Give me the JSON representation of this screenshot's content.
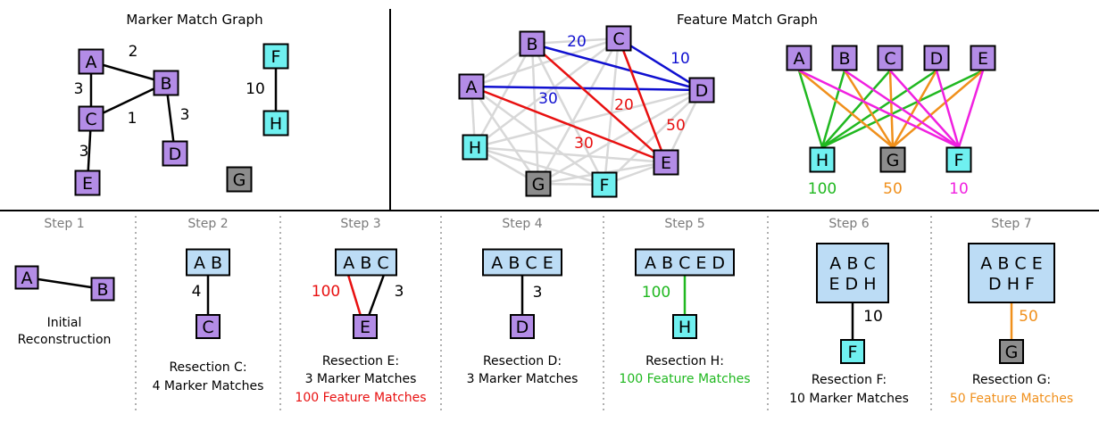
{
  "colors": {
    "purple": "#b38ce6",
    "cyan": "#6ff0f0",
    "gray": "#8c8c8c",
    "cluster": "#bcdcf5",
    "red": "#e81010",
    "blue": "#1010d0",
    "green": "#20b820",
    "orange": "#f0901c",
    "magenta": "#f020e0",
    "lightgray": "#d8d8d8",
    "black": "#000000"
  },
  "marker_graph": {
    "title": "Marker Match Graph",
    "nodes": [
      "A",
      "B",
      "C",
      "D",
      "E",
      "F",
      "G",
      "H"
    ],
    "edges": [
      {
        "from": "A",
        "to": "B",
        "weight": "2"
      },
      {
        "from": "A",
        "to": "C",
        "weight": "3"
      },
      {
        "from": "C",
        "to": "B",
        "weight": "1"
      },
      {
        "from": "B",
        "to": "D",
        "weight": "3"
      },
      {
        "from": "C",
        "to": "E",
        "weight": "3"
      },
      {
        "from": "F",
        "to": "H",
        "weight": "10"
      }
    ]
  },
  "feature_graph": {
    "title": "Feature Match Graph",
    "left": {
      "nodes": [
        "A",
        "B",
        "C",
        "D",
        "E",
        "F",
        "G",
        "H"
      ],
      "highlighted_edges": [
        {
          "from": "B",
          "to": "D",
          "weight": "20",
          "color": "blue"
        },
        {
          "from": "C",
          "to": "D",
          "weight": "10",
          "color": "blue"
        },
        {
          "from": "A",
          "to": "D",
          "weight": "30",
          "color": "blue"
        },
        {
          "from": "B",
          "to": "E",
          "weight": "20",
          "color": "red"
        },
        {
          "from": "C",
          "to": "E",
          "weight": "50",
          "color": "red"
        },
        {
          "from": "A",
          "to": "E",
          "weight": "30",
          "color": "red"
        }
      ]
    },
    "right": {
      "top_nodes": [
        "A",
        "B",
        "C",
        "D",
        "E"
      ],
      "bottom_nodes": [
        {
          "label": "H",
          "weight": "100",
          "color": "green"
        },
        {
          "label": "G",
          "weight": "50",
          "color": "orange"
        },
        {
          "label": "F",
          "weight": "10",
          "color": "magenta"
        }
      ]
    }
  },
  "steps": [
    {
      "title": "Step 1",
      "cluster": [
        "A",
        "B"
      ],
      "caption": [
        "Initial",
        "Reconstruction"
      ],
      "caption_colors": [
        "black",
        "black"
      ]
    },
    {
      "title": "Step 2",
      "cluster": [
        "A B"
      ],
      "new_node": "C",
      "edges": [
        {
          "weight": "4",
          "color": "black"
        }
      ],
      "caption": [
        "Resection C:",
        "4 Marker Matches"
      ],
      "caption_colors": [
        "black",
        "black"
      ]
    },
    {
      "title": "Step 3",
      "cluster": [
        "A B C"
      ],
      "new_node": "E",
      "edges": [
        {
          "weight": "100",
          "color": "red"
        },
        {
          "weight": "3",
          "color": "black"
        }
      ],
      "caption": [
        "Resection E:",
        "3 Marker Matches",
        "100 Feature Matches"
      ],
      "caption_colors": [
        "black",
        "black",
        "red"
      ]
    },
    {
      "title": "Step 4",
      "cluster": [
        "A B C E"
      ],
      "new_node": "D",
      "edges": [
        {
          "weight": "3",
          "color": "black"
        }
      ],
      "caption": [
        "Resection D:",
        "3 Marker Matches"
      ],
      "caption_colors": [
        "black",
        "black"
      ]
    },
    {
      "title": "Step 5",
      "cluster": [
        "A B C E D"
      ],
      "new_node": "H",
      "edges": [
        {
          "weight": "100",
          "color": "green"
        }
      ],
      "caption": [
        "Resection H:",
        "100 Feature Matches"
      ],
      "caption_colors": [
        "black",
        "green"
      ]
    },
    {
      "title": "Step 6",
      "cluster": [
        "A B C",
        "E D H"
      ],
      "new_node": "F",
      "edges": [
        {
          "weight": "10",
          "color": "black"
        }
      ],
      "caption": [
        "Resection F:",
        "10 Marker Matches"
      ],
      "caption_colors": [
        "black",
        "black"
      ]
    },
    {
      "title": "Step 7",
      "cluster": [
        "A B C E",
        "D H F"
      ],
      "new_node": "G",
      "edges": [
        {
          "weight": "50",
          "color": "orange"
        }
      ],
      "caption": [
        "Resection G:",
        "50 Feature Matches"
      ],
      "caption_colors": [
        "black",
        "orange"
      ]
    }
  ]
}
